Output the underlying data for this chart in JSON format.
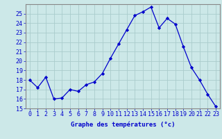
{
  "hours": [
    0,
    1,
    2,
    3,
    4,
    5,
    6,
    7,
    8,
    9,
    10,
    11,
    12,
    13,
    14,
    15,
    16,
    17,
    18,
    19,
    20,
    21,
    22,
    23
  ],
  "temperatures": [
    18.0,
    17.2,
    18.3,
    16.0,
    16.1,
    17.0,
    16.8,
    17.5,
    17.8,
    18.7,
    20.3,
    21.8,
    23.3,
    24.8,
    25.2,
    25.7,
    23.5,
    24.5,
    23.9,
    21.5,
    19.3,
    18.0,
    16.5,
    15.2
  ],
  "line_color": "#0000cc",
  "marker": "D",
  "marker_size": 2.2,
  "bg_color": "#cce8e8",
  "grid_color": "#aacccc",
  "xlabel": "Graphe des températures (°c)",
  "ylim": [
    15,
    26
  ],
  "xlim": [
    -0.5,
    23.5
  ],
  "yticks": [
    15,
    16,
    17,
    18,
    19,
    20,
    21,
    22,
    23,
    24,
    25
  ],
  "xlabel_color": "#0000cc",
  "tick_color": "#0000cc",
  "axis_label_fontsize": 6.5,
  "tick_fontsize": 6.0,
  "linewidth": 0.9
}
